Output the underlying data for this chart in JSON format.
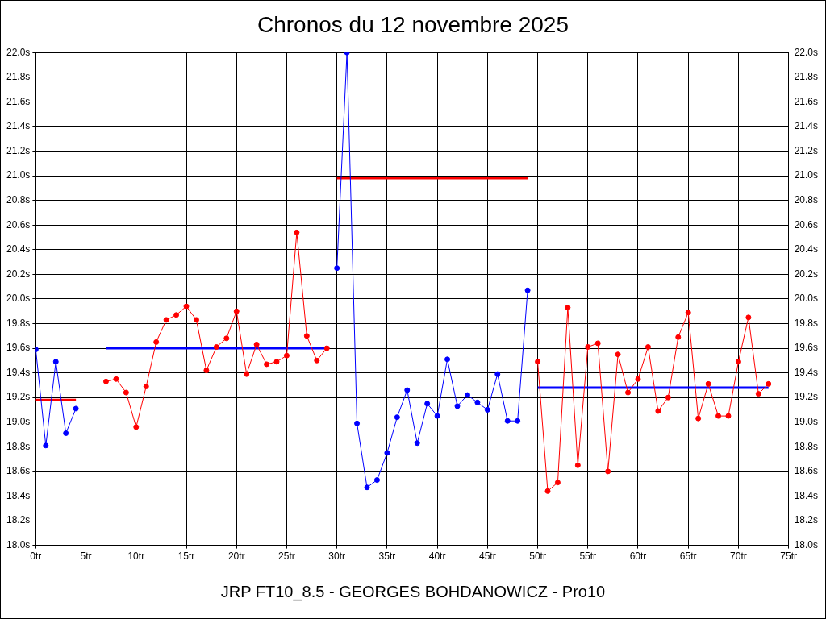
{
  "chart_data": {
    "type": "line",
    "title": "Chronos du 12 novembre 2025",
    "annotations": [
      "JRP FT10_8.5 - GEORGES BOHDANOWICZ - Pro10"
    ],
    "xlim": [
      0,
      75
    ],
    "xticks": [
      {
        "value": 0,
        "label": "0tr"
      },
      {
        "value": 5,
        "label": "5tr"
      },
      {
        "value": 10,
        "label": "10tr"
      },
      {
        "value": 15,
        "label": "15tr"
      },
      {
        "value": 20,
        "label": "20tr"
      },
      {
        "value": 25,
        "label": "25tr"
      },
      {
        "value": 30,
        "label": "30tr"
      },
      {
        "value": 35,
        "label": "35tr"
      },
      {
        "value": 40,
        "label": "40tr"
      },
      {
        "value": 45,
        "label": "45tr"
      },
      {
        "value": 50,
        "label": "50tr"
      },
      {
        "value": 55,
        "label": "55tr"
      },
      {
        "value": 60,
        "label": "60tr"
      },
      {
        "value": 65,
        "label": "65tr"
      },
      {
        "value": 70,
        "label": "70tr"
      },
      {
        "value": 75,
        "label": "75tr"
      }
    ],
    "ylim": [
      18.0,
      22.0
    ],
    "yticks": [
      {
        "value": 18.0,
        "label": "18.0s"
      },
      {
        "value": 18.2,
        "label": "18.2s"
      },
      {
        "value": 18.4,
        "label": "18.4s"
      },
      {
        "value": 18.6,
        "label": "18.6s"
      },
      {
        "value": 18.8,
        "label": "18.8s"
      },
      {
        "value": 19.0,
        "label": "19.0s"
      },
      {
        "value": 19.2,
        "label": "19.2s"
      },
      {
        "value": 19.4,
        "label": "19.4s"
      },
      {
        "value": 19.6,
        "label": "19.6s"
      },
      {
        "value": 19.8,
        "label": "19.8s"
      },
      {
        "value": 20.0,
        "label": "20.0s"
      },
      {
        "value": 20.2,
        "label": "20.2s"
      },
      {
        "value": 20.4,
        "label": "20.4s"
      },
      {
        "value": 20.6,
        "label": "20.6s"
      },
      {
        "value": 20.8,
        "label": "20.8s"
      },
      {
        "value": 21.0,
        "label": "21.0s"
      },
      {
        "value": 21.2,
        "label": "21.2s"
      },
      {
        "value": 21.4,
        "label": "21.4s"
      },
      {
        "value": 21.6,
        "label": "21.6s"
      },
      {
        "value": 21.8,
        "label": "21.8s"
      },
      {
        "value": 22.0,
        "label": "22.0s"
      }
    ],
    "y2lim": [
      18.0,
      22.0
    ],
    "y2ticks": [
      {
        "value": 18.0,
        "label": "18.0s"
      },
      {
        "value": 18.2,
        "label": "18.2s"
      },
      {
        "value": 18.4,
        "label": "18.4s"
      },
      {
        "value": 18.6,
        "label": "18.6s"
      },
      {
        "value": 18.8,
        "label": "18.8s"
      },
      {
        "value": 19.0,
        "label": "19.0s"
      },
      {
        "value": 19.2,
        "label": "19.2s"
      },
      {
        "value": 19.4,
        "label": "19.4s"
      },
      {
        "value": 19.6,
        "label": "19.6s"
      },
      {
        "value": 19.8,
        "label": "19.8s"
      },
      {
        "value": 20.0,
        "label": "20.0s"
      },
      {
        "value": 20.2,
        "label": "20.2s"
      },
      {
        "value": 20.4,
        "label": "20.4s"
      },
      {
        "value": 20.6,
        "label": "20.6s"
      },
      {
        "value": 20.8,
        "label": "20.8s"
      },
      {
        "value": 21.0,
        "label": "21.0s"
      },
      {
        "value": 21.2,
        "label": "21.2s"
      },
      {
        "value": 21.4,
        "label": "21.4s"
      },
      {
        "value": 21.6,
        "label": "21.6s"
      },
      {
        "value": 21.8,
        "label": "21.8s"
      },
      {
        "value": 22.0,
        "label": "22.0s"
      }
    ],
    "grid": true,
    "legend": false,
    "series": [
      {
        "color": "#0000ff",
        "marker": "circle",
        "x": [
          0,
          1,
          2,
          3,
          4
        ],
        "values": [
          19.59,
          18.81,
          19.49,
          18.91,
          19.11
        ]
      },
      {
        "color": "#ff0000",
        "marker": "none",
        "x": [
          0,
          4
        ],
        "values": [
          19.18,
          19.18
        ]
      },
      {
        "color": "#ff0000",
        "marker": "circle",
        "x": [
          7,
          8,
          9,
          10,
          11,
          12,
          13,
          14,
          15,
          16,
          17,
          18,
          19,
          20,
          21,
          22,
          23,
          24,
          25,
          26,
          27,
          28,
          29
        ],
        "values": [
          19.33,
          19.35,
          19.24,
          18.96,
          19.29,
          19.65,
          19.83,
          19.87,
          19.94,
          19.83,
          19.42,
          19.61,
          19.68,
          19.9,
          19.39,
          19.63,
          19.47,
          19.49,
          19.54,
          20.54,
          19.7,
          19.5,
          19.6
        ]
      },
      {
        "color": "#0000ff",
        "marker": "none",
        "x": [
          7,
          29
        ],
        "values": [
          19.6,
          19.6
        ]
      },
      {
        "color": "#0000ff",
        "marker": "circle",
        "x": [
          30,
          31,
          32,
          33,
          34,
          35,
          36,
          37,
          38,
          39,
          40,
          41,
          42,
          43,
          44,
          45,
          46,
          47,
          48,
          49
        ],
        "values": [
          20.25,
          22.0,
          18.99,
          18.47,
          18.53,
          18.75,
          19.04,
          19.26,
          18.83,
          19.15,
          19.05,
          19.51,
          19.13,
          19.22,
          19.16,
          19.1,
          19.39,
          19.01,
          19.01,
          20.07
        ]
      },
      {
        "color": "#ff0000",
        "marker": "none",
        "x": [
          30,
          49
        ],
        "values": [
          20.98,
          20.98
        ]
      },
      {
        "color": "#ff0000",
        "marker": "circle",
        "x": [
          50,
          51,
          52,
          53,
          54,
          55,
          56,
          57,
          58,
          59,
          60,
          61,
          62,
          63,
          64,
          65,
          66,
          67,
          68,
          69,
          70,
          71,
          72,
          73
        ],
        "values": [
          19.49,
          18.44,
          18.51,
          19.93,
          18.65,
          19.61,
          19.64,
          18.6,
          19.55,
          19.24,
          19.35,
          19.61,
          19.09,
          19.2,
          19.69,
          19.89,
          19.03,
          19.31,
          19.05,
          19.05,
          19.49,
          19.85,
          19.23,
          19.31
        ]
      },
      {
        "color": "#0000ff",
        "marker": "none",
        "x": [
          50,
          73
        ],
        "values": [
          19.28,
          19.28
        ]
      }
    ]
  }
}
